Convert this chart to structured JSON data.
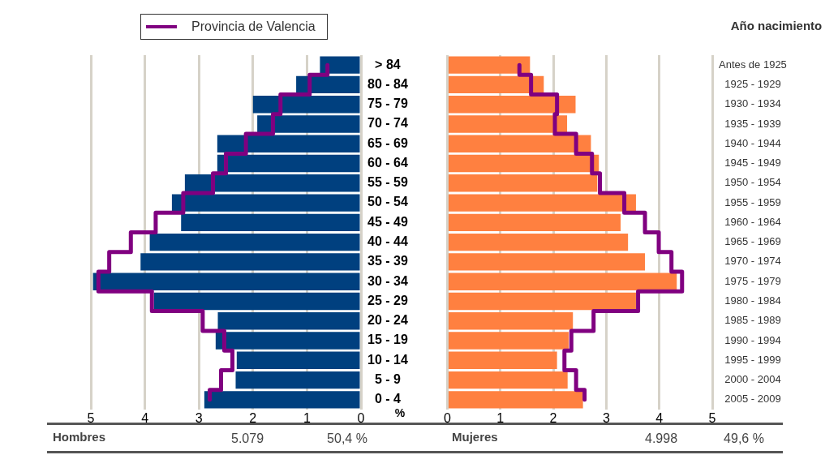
{
  "chart_data": [
    {
      "type": "bar",
      "orientation": "horizontal",
      "categories": [
        "> 84",
        "80 - 84",
        "75 - 79",
        "70 - 74",
        "65 - 69",
        "60 - 64",
        "55 - 59",
        "50 - 54",
        "45 - 49",
        "40 - 44",
        "35 - 39",
        "30 - 34",
        "25 - 29",
        "20 - 24",
        "15 - 19",
        "10 - 14",
        "5 - 9",
        "0 - 4"
      ],
      "xlabel": "%",
      "xlim": [
        5,
        0
      ],
      "xticks": [
        5,
        4,
        3,
        2,
        1,
        0
      ],
      "grid": "x",
      "legend": "top left",
      "marker": "none",
      "series": [
        {
          "type": "bar",
          "color": "#00407f",
          "values": [
            0.76,
            1.2,
            2.0,
            1.92,
            2.66,
            2.66,
            3.26,
            3.5,
            3.33,
            3.91,
            4.08,
            4.96,
            3.83,
            2.65,
            2.69,
            2.3,
            2.32,
            2.9
          ]
        },
        {
          "type": "step",
          "name": "Provincia de Valencia",
          "color": "#800080",
          "values": [
            0.62,
            0.95,
            1.49,
            1.63,
            2.13,
            2.5,
            2.74,
            3.29,
            3.8,
            4.26,
            4.66,
            4.86,
            3.87,
            2.93,
            2.53,
            2.38,
            2.59,
            2.8
          ]
        }
      ],
      "annotations": [
        "Hombres",
        "5.079",
        "50,4 %"
      ]
    },
    {
      "type": "bar",
      "orientation": "horizontal",
      "categories": [
        "Antes de 1925",
        "1925 - 1929",
        "1930 - 1934",
        "1935 - 1939",
        "1940 - 1944",
        "1945 - 1949",
        "1950 - 1954",
        "1955 - 1959",
        "1960 - 1964",
        "1965 - 1969",
        "1970 - 1974",
        "1975 - 1979",
        "1980 - 1984",
        "1985 - 1989",
        "1990 - 1994",
        "1995 - 1999",
        "2000 - 2004",
        "2005 - 2009"
      ],
      "ylabel": "Año nacimiento",
      "xlim": [
        0,
        5
      ],
      "xticks": [
        0,
        1,
        2,
        3,
        4,
        5
      ],
      "grid": "x",
      "marker": "none",
      "series": [
        {
          "type": "bar",
          "color": "#ff8040",
          "values": [
            1.56,
            1.82,
            2.42,
            2.26,
            2.71,
            2.86,
            2.83,
            3.56,
            3.27,
            3.41,
            3.73,
            4.33,
            3.56,
            2.37,
            2.29,
            2.07,
            2.27,
            2.56
          ]
        },
        {
          "type": "step",
          "color": "#800080",
          "values": [
            1.36,
            1.58,
            2.07,
            2.03,
            2.43,
            2.73,
            2.88,
            3.34,
            3.73,
            3.99,
            4.23,
            4.43,
            3.6,
            2.76,
            2.34,
            2.21,
            2.43,
            2.59
          ]
        }
      ],
      "annotations": [
        "Mujeres",
        "4.998",
        "49,6 %"
      ]
    }
  ]
}
